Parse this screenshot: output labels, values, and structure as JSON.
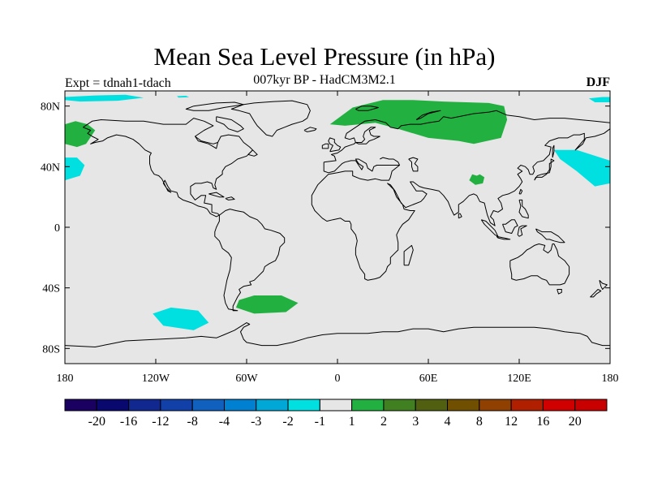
{
  "title": "Mean Sea Level Pressure (in hPa)",
  "subtitle": "007kyr BP - HadCM3M2.1",
  "left_label": "Expt = tdnah1-tdach",
  "right_label": "DJF",
  "map": {
    "projection": "cylindrical-equidistant",
    "lon_range": [
      -180,
      180
    ],
    "lat_range": [
      -90,
      90
    ],
    "background_color": "#e6e6e6",
    "coastline_color": "#000000",
    "lat_ticks": [
      {
        "value": 80,
        "label": "80N"
      },
      {
        "value": 40,
        "label": "40N"
      },
      {
        "value": 0,
        "label": "0"
      },
      {
        "value": -40,
        "label": "40S"
      },
      {
        "value": -80,
        "label": "80S"
      }
    ],
    "lon_ticks": [
      {
        "value": -180,
        "label": "180"
      },
      {
        "value": -120,
        "label": "120W"
      },
      {
        "value": -60,
        "label": "60W"
      },
      {
        "value": 0,
        "label": "0"
      },
      {
        "value": 60,
        "label": "60E"
      },
      {
        "value": 120,
        "label": "120E"
      },
      {
        "value": 180,
        "label": "180"
      }
    ]
  },
  "anomaly_regions": [
    {
      "name": "arctic-pacific-negative",
      "color": "#00e0e0",
      "points": [
        [
          -180,
          86
        ],
        [
          -160,
          87
        ],
        [
          -140,
          87.5
        ],
        [
          -128,
          85.5
        ],
        [
          -145,
          83.5
        ],
        [
          -170,
          83
        ],
        [
          -180,
          84
        ]
      ]
    },
    {
      "name": "svalbard-negative-small",
      "color": "#00e0e0",
      "points": [
        [
          -106,
          86.5
        ],
        [
          -100,
          86.8
        ],
        [
          -98,
          85.8
        ],
        [
          -105,
          85.6
        ]
      ]
    },
    {
      "name": "arctic-russia-east-negative",
      "color": "#00e0e0",
      "points": [
        [
          166,
          85
        ],
        [
          175,
          86
        ],
        [
          180,
          86
        ],
        [
          180,
          82.5
        ],
        [
          170,
          82.5
        ]
      ]
    },
    {
      "name": "bering-positive",
      "color": "#22b040",
      "points": [
        [
          -180,
          68
        ],
        [
          -173,
          70
        ],
        [
          -165,
          68
        ],
        [
          -160,
          64
        ],
        [
          -166,
          55
        ],
        [
          -172,
          53
        ],
        [
          -180,
          55
        ]
      ]
    },
    {
      "name": "north-pacific-west-negative",
      "color": "#00e0e0",
      "points": [
        [
          -180,
          46
        ],
        [
          -172,
          46
        ],
        [
          -167,
          41
        ],
        [
          -170,
          34
        ],
        [
          -180,
          31
        ]
      ]
    },
    {
      "name": "north-pacific-east-negative",
      "color": "#00e0e0",
      "points": [
        [
          143,
          51
        ],
        [
          158,
          51
        ],
        [
          180,
          44
        ],
        [
          180,
          29
        ],
        [
          170,
          27
        ],
        [
          158,
          37
        ],
        [
          147,
          45
        ]
      ]
    },
    {
      "name": "eurasia-positive",
      "color": "#22b040",
      "points": [
        [
          -5,
          68
        ],
        [
          10,
          79
        ],
        [
          30,
          84
        ],
        [
          50,
          84
        ],
        [
          70,
          83
        ],
        [
          100,
          82
        ],
        [
          110,
          80
        ],
        [
          112,
          71
        ],
        [
          108,
          59
        ],
        [
          90,
          55
        ],
        [
          80,
          57
        ],
        [
          60,
          59
        ],
        [
          50,
          62
        ],
        [
          40,
          65
        ],
        [
          25,
          69
        ],
        [
          5,
          67
        ]
      ]
    },
    {
      "name": "tibet-positive",
      "color": "#22b040",
      "points": [
        [
          87,
          31
        ],
        [
          89,
          35
        ],
        [
          92,
          34
        ],
        [
          94,
          35
        ],
        [
          97,
          33
        ],
        [
          96,
          29
        ],
        [
          91,
          28
        ]
      ]
    },
    {
      "name": "south-atlantic-positive",
      "color": "#22b040",
      "points": [
        [
          -65,
          -48
        ],
        [
          -55,
          -45
        ],
        [
          -37,
          -45
        ],
        [
          -26,
          -50
        ],
        [
          -34,
          -56
        ],
        [
          -55,
          -57
        ],
        [
          -67,
          -53
        ]
      ]
    },
    {
      "name": "south-pacific-negative",
      "color": "#00e0e0",
      "points": [
        [
          -122,
          -57
        ],
        [
          -110,
          -53
        ],
        [
          -92,
          -55
        ],
        [
          -85,
          -63
        ],
        [
          -95,
          -68
        ],
        [
          -115,
          -65
        ]
      ]
    }
  ],
  "colorbar": {
    "labels": [
      "-20",
      "-16",
      "-12",
      "-8",
      "-4",
      "-3",
      "-2",
      "-1",
      "1",
      "2",
      "3",
      "4",
      "8",
      "12",
      "16",
      "20"
    ],
    "colors": [
      "#1a0060",
      "#08086e",
      "#102890",
      "#1040a8",
      "#1060c0",
      "#0080d0",
      "#00a8d8",
      "#00e0e0",
      "#e6e6e6",
      "#22b040",
      "#408020",
      "#506010",
      "#705000",
      "#904000",
      "#b02000",
      "#d00000",
      "#c80000"
    ]
  }
}
